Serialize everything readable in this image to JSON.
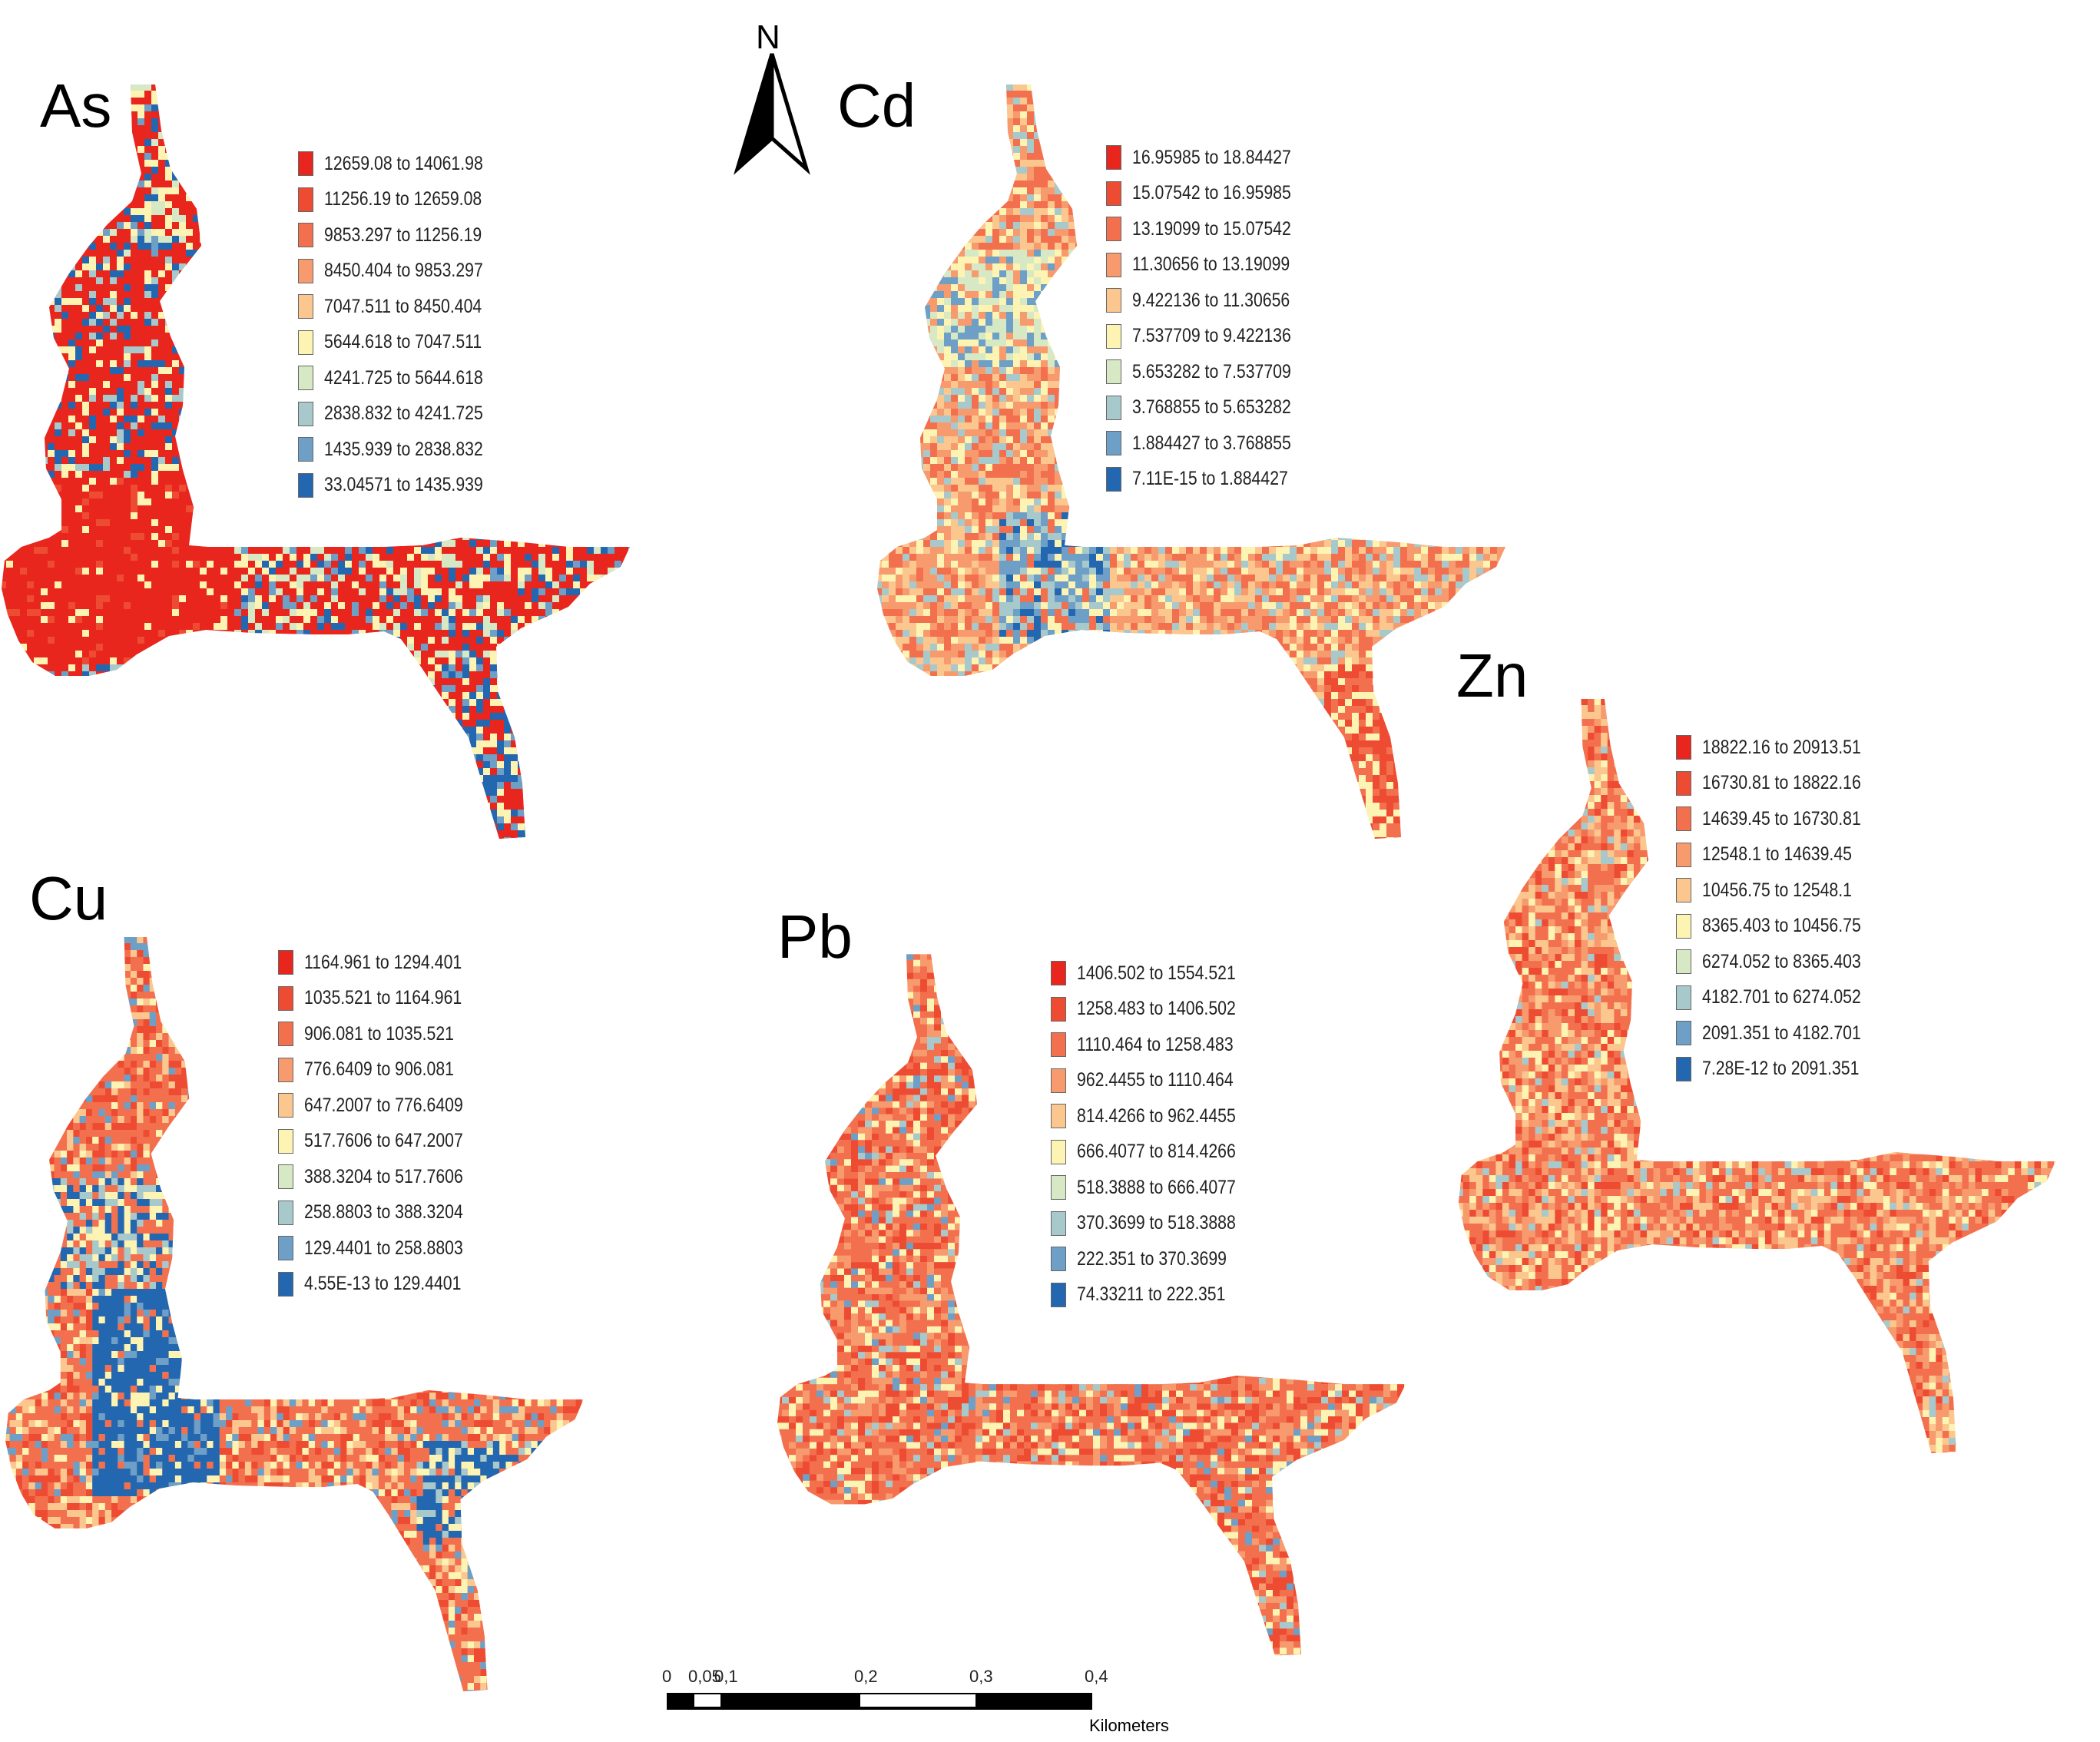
{
  "north_arrow": {
    "label": "N"
  },
  "panels": [
    {
      "element": "As",
      "legend": [
        "12659.08 to 14061.98",
        "11256.19 to 12659.08",
        "9853.297 to 11256.19",
        "8450.404 to 9853.297",
        "7047.511 to 8450.404",
        "5644.618 to 7047.511",
        "4241.725 to 5644.618",
        "2838.832 to 4241.725",
        "1435.939 to 2838.832",
        "33.04571 to 1435.939"
      ]
    },
    {
      "element": "Cd",
      "legend": [
        "16.95985 to 18.84427",
        "15.07542 to 16.95985",
        "13.19099 to 15.07542",
        "11.30656 to 13.19099",
        "9.422136 to 11.30656",
        "7.537709 to 9.422136",
        "5.653282 to 7.537709",
        "3.768855 to 5.653282",
        "1.884427 to 3.768855",
        "7.11E-15 to 1.884427"
      ]
    },
    {
      "element": "Cu",
      "legend": [
        "1164.961 to 1294.401",
        "1035.521 to 1164.961",
        "906.081 to 1035.521",
        "776.6409 to 906.081",
        "647.2007 to 776.6409",
        "517.7606 to 647.2007",
        "388.3204 to 517.7606",
        "258.8803 to 388.3204",
        "129.4401 to 258.8803",
        "4.55E-13 to 129.4401"
      ]
    },
    {
      "element": "Pb",
      "legend": [
        "1406.502 to 1554.521",
        "1258.483 to 1406.502",
        "1110.464 to 1258.483",
        "962.4455 to 1110.464",
        "814.4266 to 962.4455",
        "666.4077 to 814.4266",
        "518.3888 to 666.4077",
        "370.3699 to 518.3888",
        "222.351 to 370.3699",
        "74.33211 to 222.351"
      ]
    },
    {
      "element": "Zn",
      "legend": [
        "18822.16 to 20913.51",
        "16730.81 to 18822.16",
        "14639.45 to 16730.81",
        "12548.1 to 14639.45",
        "10456.75 to 12548.1",
        "8365.403 to 10456.75",
        "6274.052 to 8365.403",
        "4182.701 to 6274.052",
        "2091.351 to 4182.701",
        "7.28E-12 to 2091.351"
      ]
    }
  ],
  "color_ramp": [
    "#e8261e",
    "#ee4b33",
    "#f3704f",
    "#f79b6f",
    "#fbc78e",
    "#fdf3b3",
    "#d6e8c4",
    "#a8c9cb",
    "#6d9fc7",
    "#2467b1"
  ],
  "scale_bar": {
    "ticks": [
      "0",
      "0,05",
      "0,1",
      "0,2",
      "0,3",
      "0,4"
    ],
    "unit": "Kilometers"
  }
}
